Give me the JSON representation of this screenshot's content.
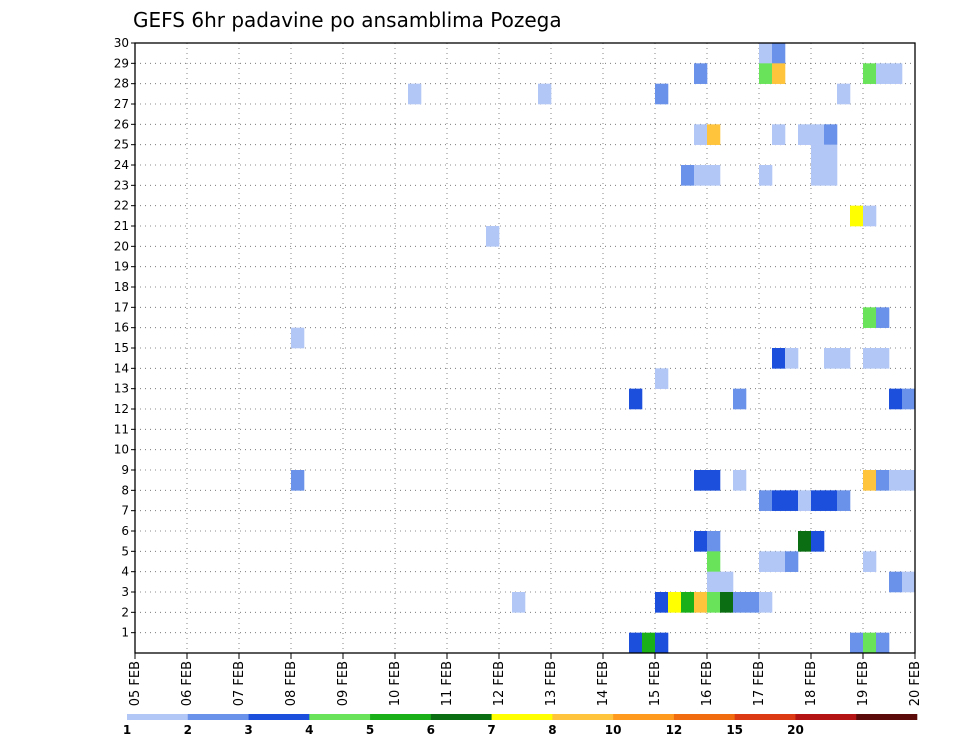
{
  "chart_data": {
    "type": "heatmap",
    "title": "GEFS 6hr padavine po ansamblima Pozega",
    "xlabel": "",
    "ylabel": "",
    "x_range": [
      0,
      60
    ],
    "y_range": [
      0,
      30
    ],
    "x_tick_labels": [
      "05 FEB",
      "06 FEB",
      "07 FEB",
      "08 FEB",
      "09 FEB",
      "10 FEB",
      "11 FEB",
      "12 FEB",
      "13 FEB",
      "14 FEB",
      "15 FEB",
      "16 FEB",
      "17 FEB",
      "18 FEB",
      "19 FEB",
      "20 FEB"
    ],
    "y_tick_labels": [
      "1",
      "2",
      "3",
      "4",
      "5",
      "6",
      "7",
      "8",
      "9",
      "10",
      "11",
      "12",
      "13",
      "14",
      "15",
      "16",
      "17",
      "18",
      "19",
      "20",
      "21",
      "22",
      "23",
      "24",
      "25",
      "26",
      "27",
      "28",
      "29",
      "30"
    ],
    "grid": true,
    "colorbar": {
      "levels": [
        "1",
        "2",
        "3",
        "4",
        "5",
        "6",
        "7",
        "8",
        "10",
        "12",
        "15",
        "20"
      ],
      "colors": [
        "#b3c7f7",
        "#6a92ea",
        "#1c4fdc",
        "#69e35a",
        "#19b019",
        "#0b6e12",
        "#ffff00",
        "#ffc43c",
        "#ff9a1e",
        "#f06c0f",
        "#dc3a14",
        "#b41414",
        "#5c0b0b"
      ]
    },
    "cells": [
      {
        "x": 48,
        "y": 30,
        "v": 1
      },
      {
        "x": 49,
        "y": 30,
        "v": 2
      },
      {
        "x": 43,
        "y": 29,
        "v": 2
      },
      {
        "x": 48,
        "y": 29,
        "v": 4
      },
      {
        "x": 49,
        "y": 29,
        "v": 8
      },
      {
        "x": 56,
        "y": 29,
        "v": 4
      },
      {
        "x": 57,
        "y": 29,
        "v": 1
      },
      {
        "x": 58,
        "y": 29,
        "v": 1
      },
      {
        "x": 21,
        "y": 28,
        "v": 1
      },
      {
        "x": 31,
        "y": 28,
        "v": 1
      },
      {
        "x": 40,
        "y": 28,
        "v": 2
      },
      {
        "x": 54,
        "y": 28,
        "v": 1
      },
      {
        "x": 43,
        "y": 26,
        "v": 1
      },
      {
        "x": 44,
        "y": 26,
        "v": 8
      },
      {
        "x": 49,
        "y": 26,
        "v": 1
      },
      {
        "x": 51,
        "y": 26,
        "v": 1
      },
      {
        "x": 52,
        "y": 26,
        "v": 1
      },
      {
        "x": 53,
        "y": 26,
        "v": 2
      },
      {
        "x": 52,
        "y": 25,
        "v": 1
      },
      {
        "x": 53,
        "y": 25,
        "v": 1
      },
      {
        "x": 52,
        "y": 24,
        "v": 1
      },
      {
        "x": 53,
        "y": 24,
        "v": 1
      },
      {
        "x": 42,
        "y": 24,
        "v": 2
      },
      {
        "x": 43,
        "y": 24,
        "v": 1
      },
      {
        "x": 44,
        "y": 24,
        "v": 1
      },
      {
        "x": 48,
        "y": 24,
        "v": 1
      },
      {
        "x": 55,
        "y": 22,
        "v": 7
      },
      {
        "x": 56,
        "y": 22,
        "v": 1
      },
      {
        "x": 27,
        "y": 21,
        "v": 1
      },
      {
        "x": 56,
        "y": 17,
        "v": 4
      },
      {
        "x": 57,
        "y": 17,
        "v": 2
      },
      {
        "x": 12,
        "y": 16,
        "v": 1
      },
      {
        "x": 49,
        "y": 15,
        "v": 3
      },
      {
        "x": 50,
        "y": 15,
        "v": 1
      },
      {
        "x": 53,
        "y": 15,
        "v": 1
      },
      {
        "x": 54,
        "y": 15,
        "v": 1
      },
      {
        "x": 56,
        "y": 15,
        "v": 1
      },
      {
        "x": 57,
        "y": 15,
        "v": 1
      },
      {
        "x": 40,
        "y": 14,
        "v": 1
      },
      {
        "x": 38,
        "y": 13,
        "v": 3
      },
      {
        "x": 46,
        "y": 13,
        "v": 2
      },
      {
        "x": 58,
        "y": 13,
        "v": 3
      },
      {
        "x": 59,
        "y": 13,
        "v": 2
      },
      {
        "x": 12,
        "y": 9,
        "v": 2
      },
      {
        "x": 43,
        "y": 9,
        "v": 3
      },
      {
        "x": 44,
        "y": 9,
        "v": 3
      },
      {
        "x": 46,
        "y": 9,
        "v": 1
      },
      {
        "x": 56,
        "y": 9,
        "v": 8
      },
      {
        "x": 57,
        "y": 9,
        "v": 2
      },
      {
        "x": 58,
        "y": 9,
        "v": 1
      },
      {
        "x": 59,
        "y": 9,
        "v": 1
      },
      {
        "x": 48,
        "y": 8,
        "v": 2
      },
      {
        "x": 49,
        "y": 8,
        "v": 3
      },
      {
        "x": 50,
        "y": 8,
        "v": 3
      },
      {
        "x": 51,
        "y": 8,
        "v": 1
      },
      {
        "x": 52,
        "y": 8,
        "v": 3
      },
      {
        "x": 53,
        "y": 8,
        "v": 3
      },
      {
        "x": 54,
        "y": 8,
        "v": 2
      },
      {
        "x": 43,
        "y": 6,
        "v": 3
      },
      {
        "x": 44,
        "y": 6,
        "v": 2
      },
      {
        "x": 51,
        "y": 6,
        "v": 6
      },
      {
        "x": 52,
        "y": 6,
        "v": 3
      },
      {
        "x": 44,
        "y": 5,
        "v": 4
      },
      {
        "x": 48,
        "y": 5,
        "v": 1
      },
      {
        "x": 49,
        "y": 5,
        "v": 1
      },
      {
        "x": 50,
        "y": 5,
        "v": 2
      },
      {
        "x": 56,
        "y": 5,
        "v": 1
      },
      {
        "x": 44,
        "y": 4,
        "v": 1
      },
      {
        "x": 45,
        "y": 4,
        "v": 1
      },
      {
        "x": 58,
        "y": 4,
        "v": 2
      },
      {
        "x": 59,
        "y": 4,
        "v": 1
      },
      {
        "x": 29,
        "y": 3,
        "v": 1
      },
      {
        "x": 40,
        "y": 3,
        "v": 3
      },
      {
        "x": 41,
        "y": 3,
        "v": 7
      },
      {
        "x": 42,
        "y": 3,
        "v": 5
      },
      {
        "x": 43,
        "y": 3,
        "v": 8
      },
      {
        "x": 44,
        "y": 3,
        "v": 4
      },
      {
        "x": 45,
        "y": 3,
        "v": 6
      },
      {
        "x": 46,
        "y": 3,
        "v": 2
      },
      {
        "x": 47,
        "y": 3,
        "v": 2
      },
      {
        "x": 48,
        "y": 3,
        "v": 1
      },
      {
        "x": 38,
        "y": 1,
        "v": 3
      },
      {
        "x": 39,
        "y": 1,
        "v": 5
      },
      {
        "x": 40,
        "y": 1,
        "v": 3
      },
      {
        "x": 55,
        "y": 1,
        "v": 2
      },
      {
        "x": 56,
        "y": 1,
        "v": 4
      },
      {
        "x": 57,
        "y": 1,
        "v": 2
      }
    ]
  }
}
